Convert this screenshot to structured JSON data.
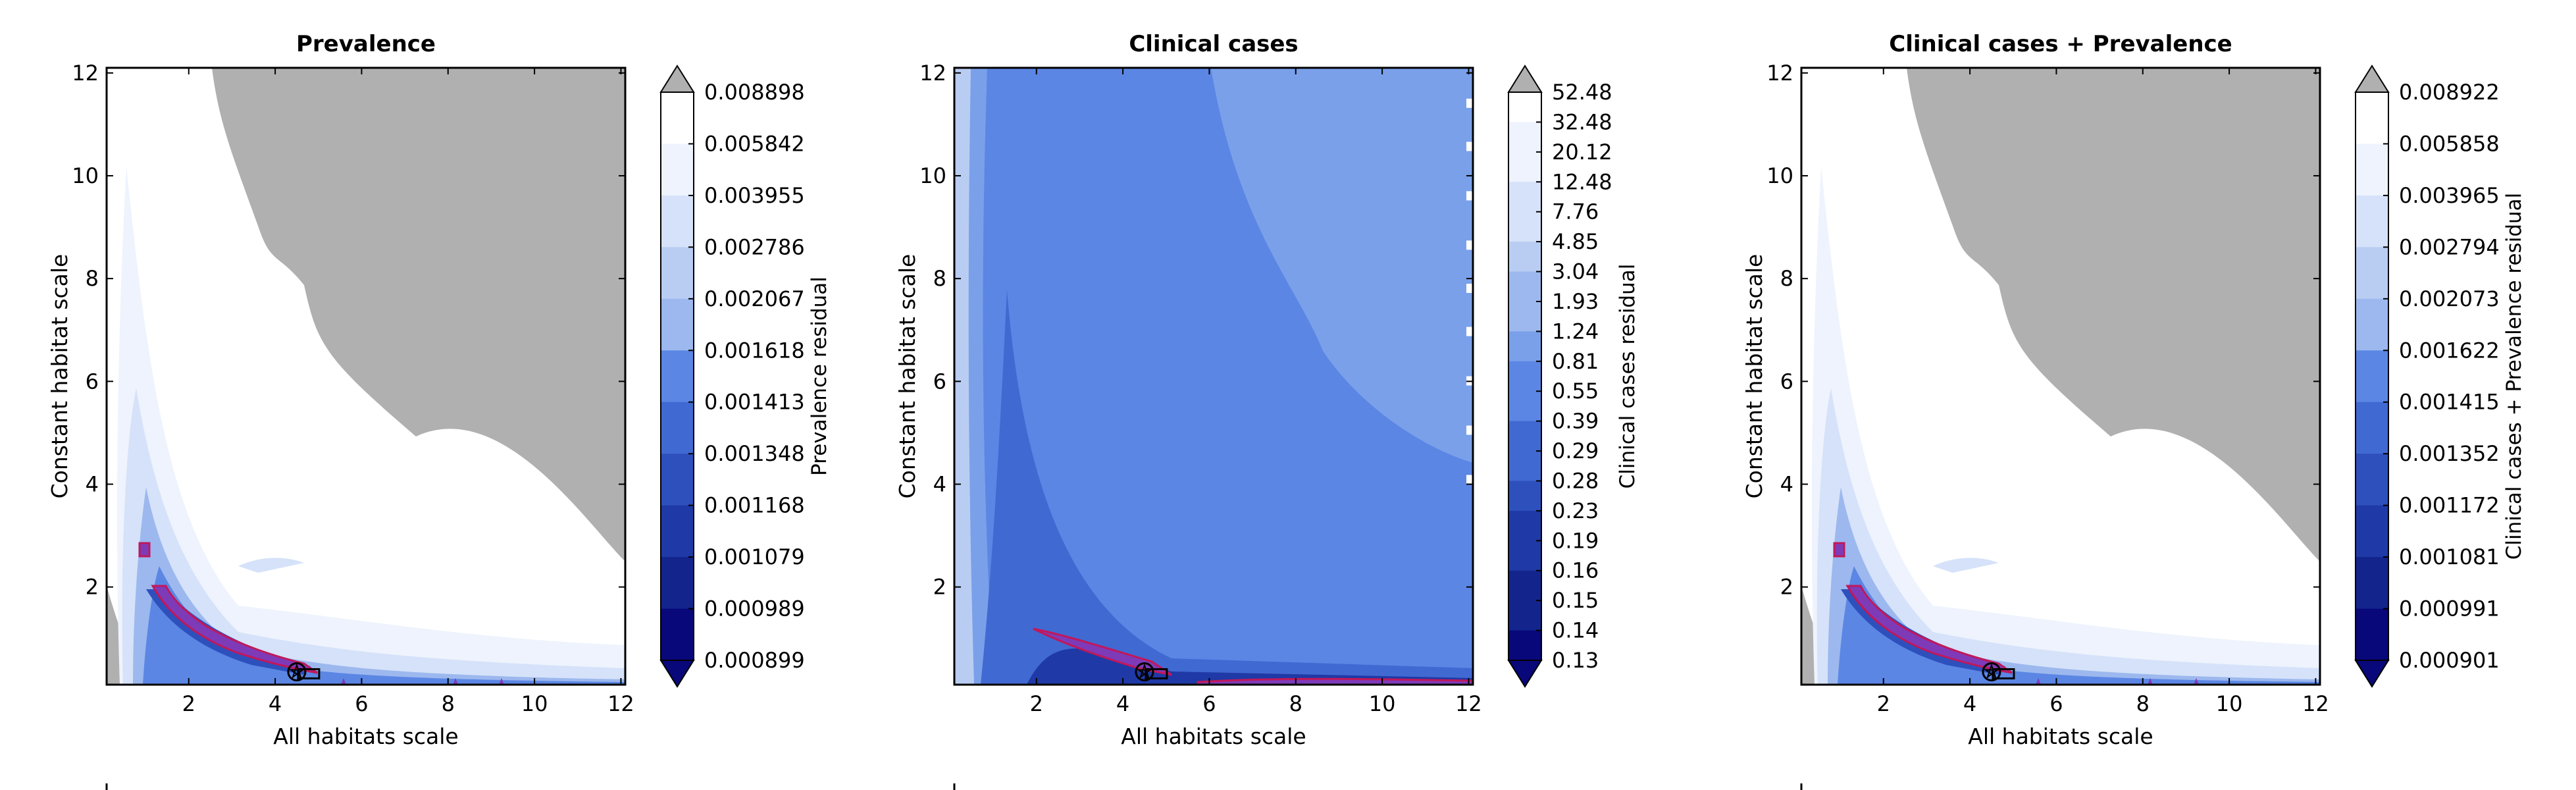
{
  "chart_data": [
    {
      "type": "contour",
      "title": "Prevalence",
      "xlabel": "All habitats scale",
      "ylabel": "Constant habitat scale",
      "xlim": [
        0.1,
        12.1
      ],
      "ylim": [
        0.1,
        12.1
      ],
      "xticks": [
        2,
        4,
        6,
        8,
        10,
        12
      ],
      "yticks": [
        2,
        4,
        6,
        8,
        10,
        12
      ],
      "colorbar": {
        "label": "Prevalence residual",
        "levels": [
          "0.008898",
          "0.005842",
          "0.003955",
          "0.002786",
          "0.002067",
          "0.001618",
          "0.001413",
          "0.001348",
          "0.001168",
          "0.001079",
          "0.000989",
          "0.000899"
        ],
        "over_color": "#b0b0b0",
        "under_color": "#08087a"
      },
      "best_fit_marker": {
        "x": 4.5,
        "y": 0.35
      }
    },
    {
      "type": "contour",
      "title": "Clinical cases",
      "xlabel": "All habitats scale",
      "ylabel": "Constant habitat scale",
      "xlim": [
        0.1,
        12.1
      ],
      "ylim": [
        0.1,
        12.1
      ],
      "xticks": [
        2,
        4,
        6,
        8,
        10,
        12
      ],
      "yticks": [
        2,
        4,
        6,
        8,
        10,
        12
      ],
      "colorbar": {
        "label": "Clinical cases residual",
        "levels": [
          "52.48",
          "32.48",
          "20.12",
          "12.48",
          "7.76",
          "4.85",
          "3.04",
          "1.93",
          "1.24",
          "0.81",
          "0.55",
          "0.39",
          "0.29",
          "0.28",
          "0.23",
          "0.19",
          "0.16",
          "0.15",
          "0.14",
          "0.13"
        ],
        "over_color": "#b0b0b0",
        "under_color": "#08087a"
      },
      "best_fit_marker": {
        "x": 4.5,
        "y": 0.35
      }
    },
    {
      "type": "contour",
      "title": "Clinical cases + Prevalence",
      "xlabel": "All habitats scale",
      "ylabel": "Constant habitat scale",
      "xlim": [
        0.1,
        12.1
      ],
      "ylim": [
        0.1,
        12.1
      ],
      "xticks": [
        2,
        4,
        6,
        8,
        10,
        12
      ],
      "yticks": [
        2,
        4,
        6,
        8,
        10,
        12
      ],
      "colorbar": {
        "label": "Clinical cases + Prevalence residual",
        "levels": [
          "0.008922",
          "0.005858",
          "0.003965",
          "0.002794",
          "0.002073",
          "0.001622",
          "0.001415",
          "0.001352",
          "0.001172",
          "0.001081",
          "0.000991",
          "0.000901"
        ],
        "over_color": "#b0b0b0",
        "under_color": "#08087a"
      },
      "best_fit_marker": {
        "x": 4.5,
        "y": 0.35
      }
    }
  ],
  "colors": {
    "scale": [
      "#ffffff",
      "#eef3fd",
      "#d5e2f9",
      "#b9cdf3",
      "#9cb8ee",
      "#7aa0ea",
      "#5b86e4",
      "#4169d2",
      "#2e50bd",
      "#1f39a6",
      "#13258d",
      "#08087a"
    ],
    "highlight_fill": "#7e3bb8",
    "highlight_edge": "#c0185a",
    "over": "#b0b0b0",
    "under": "#08087a"
  }
}
